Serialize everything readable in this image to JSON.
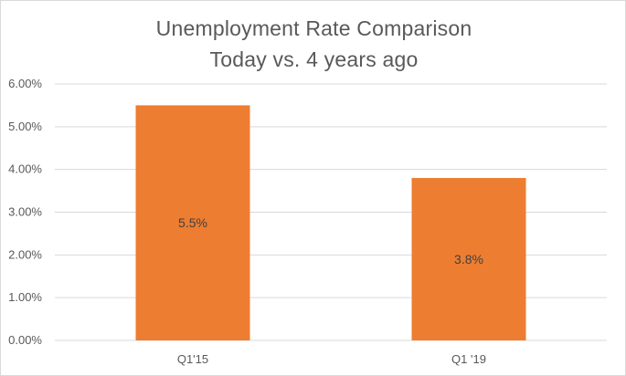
{
  "chart_data": {
    "type": "bar",
    "title": "Unemployment Rate  Comparison",
    "subtitle": "Today vs. 4 years ago",
    "categories": [
      "Q1'15",
      "Q1 '19"
    ],
    "values": [
      5.5,
      3.8
    ],
    "data_labels": [
      "5.5%",
      "3.8%"
    ],
    "y_tick_labels": [
      "0.00%",
      "1.00%",
      "2.00%",
      "3.00%",
      "4.00%",
      "5.00%",
      "6.00%"
    ],
    "ylim": [
      0,
      6
    ],
    "grid": true,
    "legend": "none",
    "bar_color": "#ED7D31",
    "grid_color": "#d9d9d9"
  }
}
